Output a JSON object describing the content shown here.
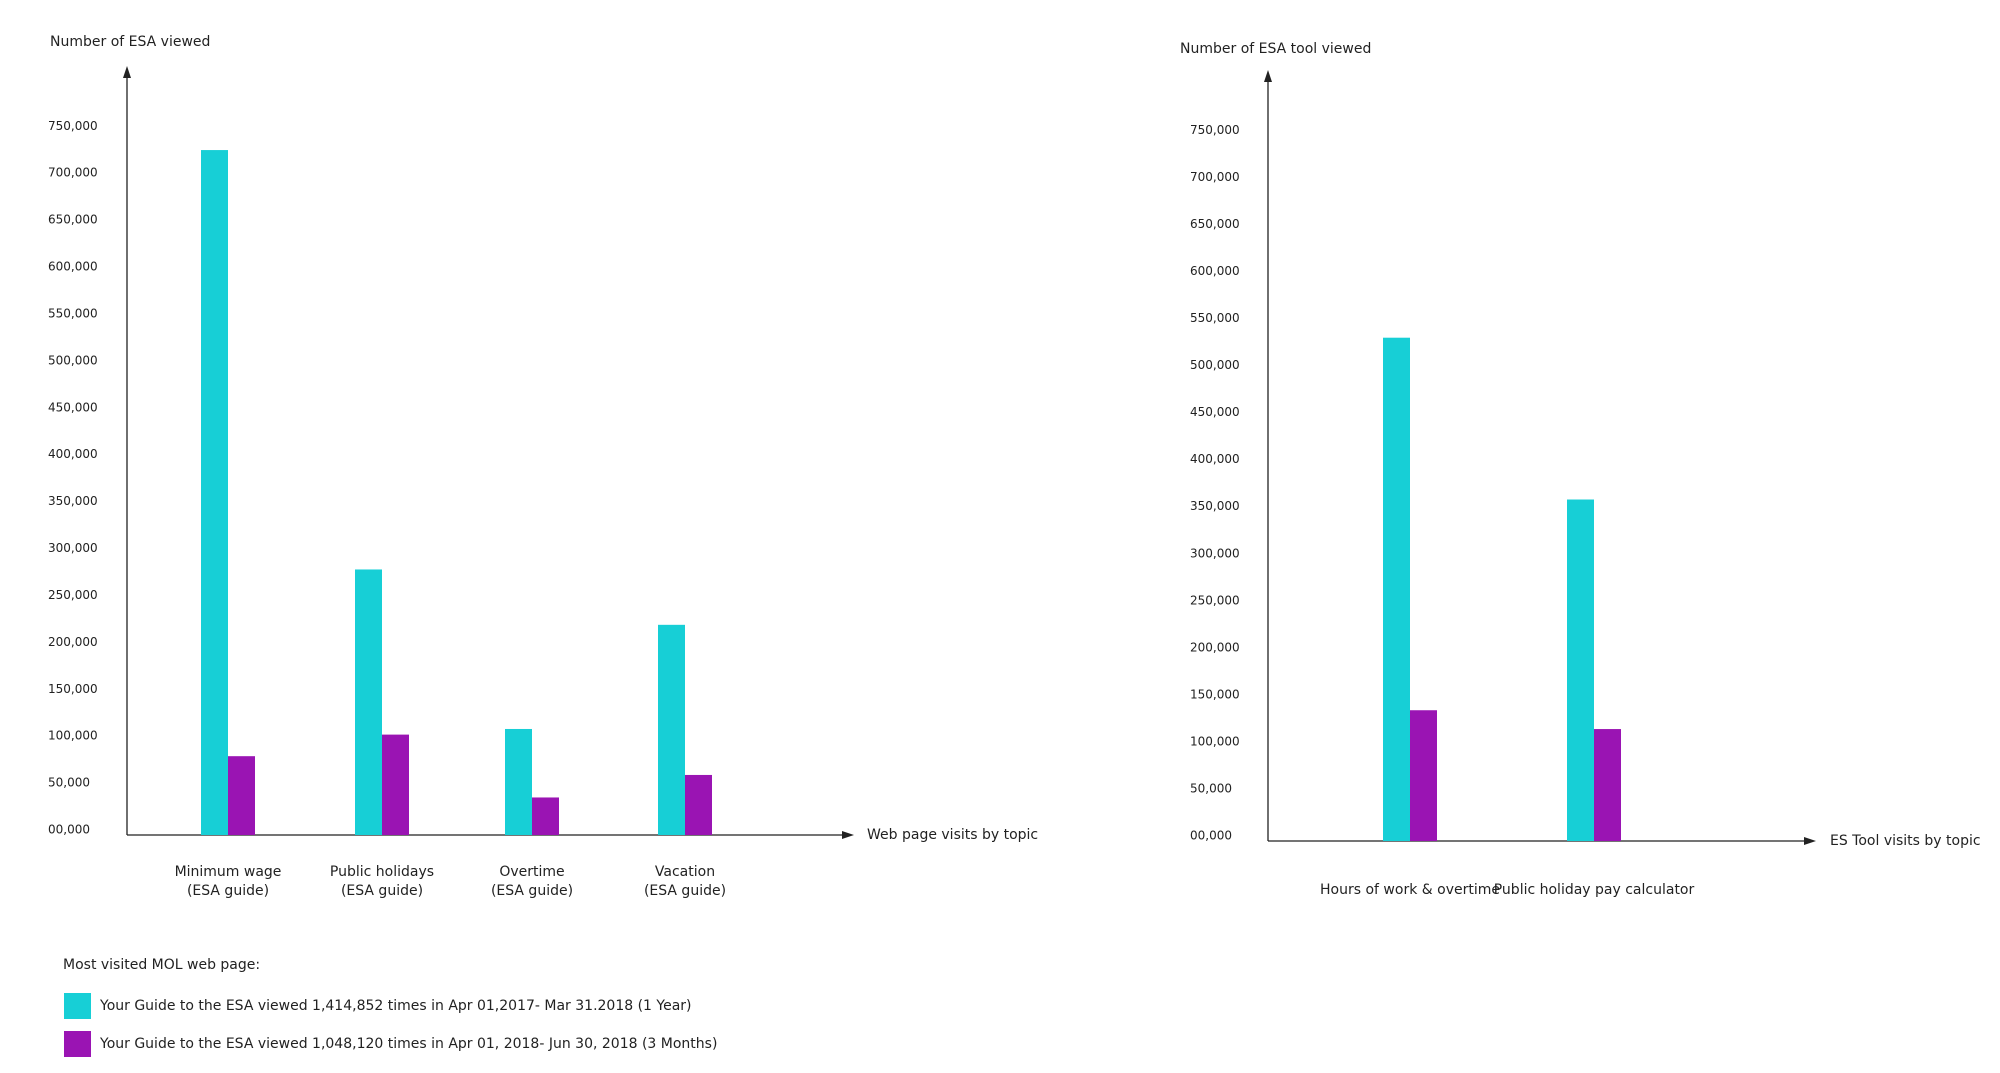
{
  "chart_data": [
    {
      "type": "bar",
      "y_label": "Number of ESA viewed",
      "x_label": "Web page visits by topic",
      "categories": [
        "Minimum wage\n(ESA guide)",
        "Public holidays\n(ESA guide)",
        "Overtime\n(ESA guide)",
        "Vacation\n(ESA guide)"
      ],
      "legend_title": "Most visited MOL web page:",
      "series": [
        {
          "name": "Your Guide to the ESA viewed 1,414,852 times in Apr 01,2017- Mar 31.2018 (1 Year)",
          "color": "#17cfd6",
          "values": [
            730000,
            283000,
            113000,
            224000
          ]
        },
        {
          "name": "Your Guide to the ESA viewed 1,048,120 times in Apr 01, 2018- Jun 30, 2018 (3 Months)",
          "color": "#9a14b3",
          "values": [
            84000,
            107000,
            40000,
            64000
          ]
        }
      ],
      "ylim": [
        0,
        810000
      ],
      "yticks": [
        {
          "value": 0,
          "label": "00,000"
        },
        {
          "value": 50000,
          "label": "50,000"
        },
        {
          "value": 100000,
          "label": "100,000"
        },
        {
          "value": 150000,
          "label": "150,000"
        },
        {
          "value": 200000,
          "label": "200,000"
        },
        {
          "value": 250000,
          "label": "250,000"
        },
        {
          "value": 300000,
          "label": "300,000"
        },
        {
          "value": 350000,
          "label": "350,000"
        },
        {
          "value": 400000,
          "label": "400,000"
        },
        {
          "value": 450000,
          "label": "450,000"
        },
        {
          "value": 500000,
          "label": "500,000"
        },
        {
          "value": 550000,
          "label": "550,000"
        },
        {
          "value": 600000,
          "label": "600,000"
        },
        {
          "value": 650000,
          "label": "650,000"
        },
        {
          "value": 700000,
          "label": "700,000"
        },
        {
          "value": 750000,
          "label": "750,000"
        }
      ]
    },
    {
      "type": "bar",
      "y_label": "Number of ESA tool viewed",
      "x_label": "ES Tool visits by topic",
      "categories": [
        "Hours of work & overtime",
        "Public holiday pay calculator"
      ],
      "series": [
        {
          "color": "#17cfd6",
          "values": [
            535000,
            363000
          ]
        },
        {
          "color": "#9a14b3",
          "values": [
            139000,
            119000
          ]
        }
      ],
      "ylim": [
        0,
        810000
      ],
      "yticks": [
        {
          "value": 0,
          "label": "00,000"
        },
        {
          "value": 50000,
          "label": "50,000"
        },
        {
          "value": 100000,
          "label": "100,000"
        },
        {
          "value": 150000,
          "label": "150,000"
        },
        {
          "value": 200000,
          "label": "200,000"
        },
        {
          "value": 250000,
          "label": "250,000"
        },
        {
          "value": 300000,
          "label": "300,000"
        },
        {
          "value": 350000,
          "label": "350,000"
        },
        {
          "value": 400000,
          "label": "400,000"
        },
        {
          "value": 450000,
          "label": "450,000"
        },
        {
          "value": 500000,
          "label": "500,000"
        },
        {
          "value": 550000,
          "label": "550,000"
        },
        {
          "value": 600000,
          "label": "600,000"
        },
        {
          "value": 650000,
          "label": "650,000"
        },
        {
          "value": 700000,
          "label": "700,000"
        },
        {
          "value": 750000,
          "label": "750,000"
        }
      ]
    }
  ]
}
